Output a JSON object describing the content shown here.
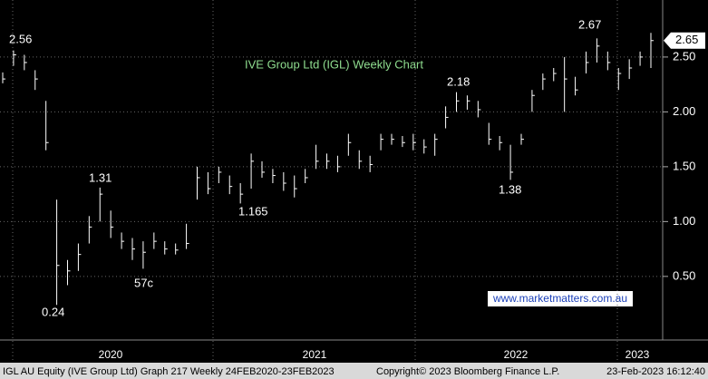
{
  "chart_data": {
    "type": "ohlc",
    "title": "IVE Group Ltd (IGL) Weekly Chart",
    "color": "#ffffff",
    "high": [
      2.36,
      2.56,
      2.52,
      2.38,
      2.1,
      1.2,
      0.65,
      0.8,
      1.05,
      1.31,
      1.1,
      0.9,
      0.85,
      0.82,
      0.9,
      0.82,
      0.8,
      0.98,
      1.5,
      1.45,
      1.5,
      1.42,
      1.35,
      1.62,
      1.55,
      1.48,
      1.45,
      1.42,
      1.48,
      1.7,
      1.62,
      1.6,
      1.8,
      1.65,
      1.6,
      1.8,
      1.8,
      1.78,
      1.8,
      1.75,
      1.8,
      2.05,
      2.18,
      2.15,
      2.1,
      1.9,
      1.78,
      1.7,
      1.8,
      2.2,
      2.35,
      2.4,
      2.5,
      2.32,
      2.55,
      2.67,
      2.55,
      2.4,
      2.48,
      2.55,
      2.72
    ],
    "low": [
      2.26,
      2.42,
      2.38,
      2.2,
      1.65,
      0.24,
      0.42,
      0.55,
      0.8,
      1.0,
      0.85,
      0.75,
      0.65,
      0.57,
      0.75,
      0.7,
      0.7,
      0.75,
      1.2,
      1.25,
      1.35,
      1.25,
      1.165,
      1.3,
      1.4,
      1.35,
      1.28,
      1.22,
      1.35,
      1.48,
      1.48,
      1.45,
      1.6,
      1.48,
      1.45,
      1.65,
      1.7,
      1.68,
      1.65,
      1.62,
      1.6,
      1.85,
      2.0,
      2.02,
      1.95,
      1.7,
      1.65,
      1.38,
      1.7,
      2.0,
      2.2,
      2.28,
      2.0,
      2.15,
      2.35,
      2.45,
      2.38,
      2.2,
      2.3,
      2.42,
      2.4
    ],
    "close": [
      2.3,
      2.52,
      2.45,
      2.3,
      1.72,
      0.6,
      0.55,
      0.7,
      0.95,
      1.25,
      0.95,
      0.82,
      0.75,
      0.72,
      0.82,
      0.75,
      0.74,
      0.8,
      1.4,
      1.3,
      1.45,
      1.32,
      1.25,
      1.55,
      1.45,
      1.42,
      1.35,
      1.3,
      1.4,
      1.55,
      1.55,
      1.5,
      1.72,
      1.55,
      1.52,
      1.75,
      1.75,
      1.72,
      1.72,
      1.68,
      1.75,
      1.95,
      2.1,
      2.1,
      2.02,
      1.75,
      1.72,
      1.45,
      1.75,
      2.15,
      2.3,
      2.35,
      2.3,
      2.2,
      2.45,
      2.6,
      2.45,
      2.35,
      2.4,
      2.5,
      2.65
    ],
    "ylim": [
      -0.08,
      3.02
    ],
    "yticks": [
      {
        "value": 0.5,
        "label": "0.50"
      },
      {
        "value": 1.0,
        "label": "1.00"
      },
      {
        "value": 1.5,
        "label": "1.50"
      },
      {
        "value": 2.0,
        "label": "2.00"
      },
      {
        "value": 2.5,
        "label": "2.50"
      }
    ],
    "last_price": 2.65,
    "x_axis_labels": [
      "2020",
      "2021",
      "2022",
      "2023"
    ],
    "annotations": [
      "2.56",
      "1.31",
      "0.24",
      "57c",
      "1.165",
      "2.18",
      "1.38",
      "2.67"
    ],
    "watermark": "www.marketmatters.com.au",
    "footer": [
      "IGL AU Equity (IVE Group Ltd) Graph 217  Weekly 24FEB2020-23FEB2023",
      "Copyright© 2023 Bloomberg Finance L.P.",
      "23-Feb-2023 16:12:40"
    ]
  }
}
